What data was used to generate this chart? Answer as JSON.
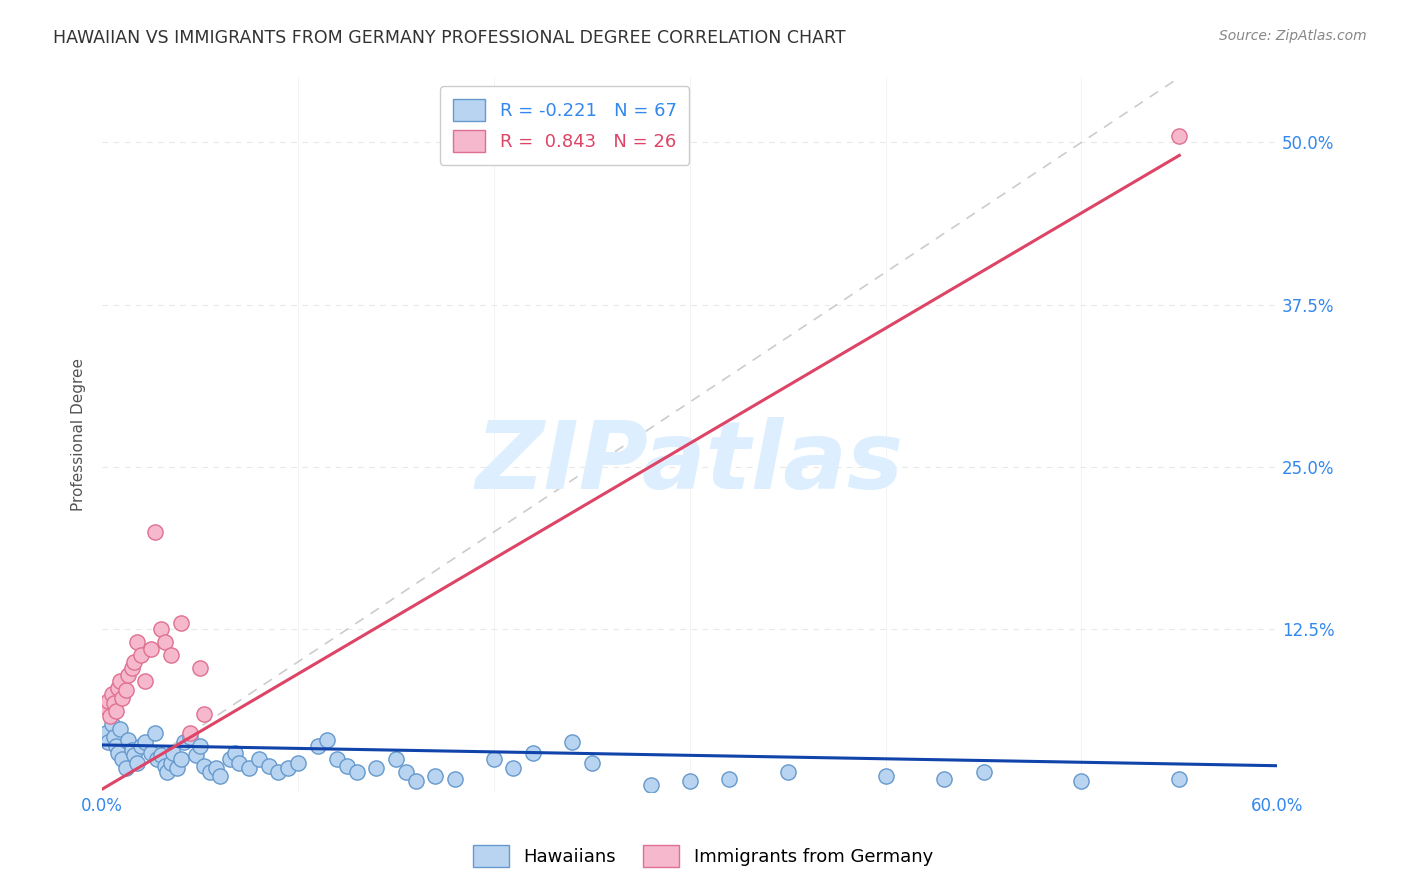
{
  "title": "HAWAIIAN VS IMMIGRANTS FROM GERMANY PROFESSIONAL DEGREE CORRELATION CHART",
  "source_text": "Source: ZipAtlas.com",
  "ylabel": "Professional Degree",
  "watermark": "ZIPatlas",
  "xlim": [
    0.0,
    0.6
  ],
  "ylim": [
    0.0,
    0.55
  ],
  "ytick_positions": [
    0.0,
    0.125,
    0.25,
    0.375,
    0.5
  ],
  "ytick_labels": [
    "",
    "12.5%",
    "25.0%",
    "37.5%",
    "50.0%"
  ],
  "xtick_positions": [
    0.0,
    0.1,
    0.2,
    0.3,
    0.4,
    0.5,
    0.6
  ],
  "xtick_labels": [
    "0.0%",
    "",
    "",
    "",
    "",
    "",
    "60.0%"
  ],
  "legend_line1": "R = -0.221   N = 67",
  "legend_line2": "R =  0.843   N = 26",
  "hawaiians_scatter": [
    [
      0.002,
      0.045
    ],
    [
      0.003,
      0.038
    ],
    [
      0.005,
      0.052
    ],
    [
      0.006,
      0.042
    ],
    [
      0.007,
      0.035
    ],
    [
      0.008,
      0.03
    ],
    [
      0.009,
      0.048
    ],
    [
      0.01,
      0.025
    ],
    [
      0.012,
      0.018
    ],
    [
      0.013,
      0.04
    ],
    [
      0.015,
      0.032
    ],
    [
      0.016,
      0.028
    ],
    [
      0.018,
      0.022
    ],
    [
      0.02,
      0.035
    ],
    [
      0.022,
      0.038
    ],
    [
      0.025,
      0.03
    ],
    [
      0.027,
      0.045
    ],
    [
      0.028,
      0.025
    ],
    [
      0.03,
      0.028
    ],
    [
      0.032,
      0.02
    ],
    [
      0.033,
      0.015
    ],
    [
      0.035,
      0.022
    ],
    [
      0.036,
      0.03
    ],
    [
      0.038,
      0.018
    ],
    [
      0.04,
      0.025
    ],
    [
      0.042,
      0.038
    ],
    [
      0.045,
      0.042
    ],
    [
      0.048,
      0.028
    ],
    [
      0.05,
      0.035
    ],
    [
      0.052,
      0.02
    ],
    [
      0.055,
      0.015
    ],
    [
      0.058,
      0.018
    ],
    [
      0.06,
      0.012
    ],
    [
      0.065,
      0.025
    ],
    [
      0.068,
      0.03
    ],
    [
      0.07,
      0.022
    ],
    [
      0.075,
      0.018
    ],
    [
      0.08,
      0.025
    ],
    [
      0.085,
      0.02
    ],
    [
      0.09,
      0.015
    ],
    [
      0.095,
      0.018
    ],
    [
      0.1,
      0.022
    ],
    [
      0.11,
      0.035
    ],
    [
      0.115,
      0.04
    ],
    [
      0.12,
      0.025
    ],
    [
      0.125,
      0.02
    ],
    [
      0.13,
      0.015
    ],
    [
      0.14,
      0.018
    ],
    [
      0.15,
      0.025
    ],
    [
      0.155,
      0.015
    ],
    [
      0.16,
      0.008
    ],
    [
      0.17,
      0.012
    ],
    [
      0.18,
      0.01
    ],
    [
      0.2,
      0.025
    ],
    [
      0.21,
      0.018
    ],
    [
      0.22,
      0.03
    ],
    [
      0.24,
      0.038
    ],
    [
      0.25,
      0.022
    ],
    [
      0.28,
      0.005
    ],
    [
      0.3,
      0.008
    ],
    [
      0.32,
      0.01
    ],
    [
      0.35,
      0.015
    ],
    [
      0.4,
      0.012
    ],
    [
      0.43,
      0.01
    ],
    [
      0.45,
      0.015
    ],
    [
      0.5,
      0.008
    ],
    [
      0.55,
      0.01
    ]
  ],
  "germany_scatter": [
    [
      0.002,
      0.065
    ],
    [
      0.003,
      0.07
    ],
    [
      0.004,
      0.058
    ],
    [
      0.005,
      0.075
    ],
    [
      0.006,
      0.068
    ],
    [
      0.007,
      0.062
    ],
    [
      0.008,
      0.08
    ],
    [
      0.009,
      0.085
    ],
    [
      0.01,
      0.072
    ],
    [
      0.012,
      0.078
    ],
    [
      0.013,
      0.09
    ],
    [
      0.015,
      0.095
    ],
    [
      0.016,
      0.1
    ],
    [
      0.018,
      0.115
    ],
    [
      0.02,
      0.105
    ],
    [
      0.022,
      0.085
    ],
    [
      0.025,
      0.11
    ],
    [
      0.027,
      0.2
    ],
    [
      0.03,
      0.125
    ],
    [
      0.032,
      0.115
    ],
    [
      0.035,
      0.105
    ],
    [
      0.04,
      0.13
    ],
    [
      0.045,
      0.045
    ],
    [
      0.05,
      0.095
    ],
    [
      0.052,
      0.06
    ],
    [
      0.55,
      0.505
    ]
  ],
  "hawaiians_line": {
    "x": [
      0.0,
      0.6
    ],
    "y": [
      0.036,
      0.02
    ]
  },
  "germany_line": {
    "x": [
      0.0,
      0.55
    ],
    "y": [
      0.002,
      0.49
    ]
  },
  "diagonal_line": {
    "x": [
      0.02,
      0.57
    ],
    "y": [
      0.02,
      0.57
    ]
  },
  "color_hawaiians_fill": "#b8d4f0",
  "color_hawaiians_edge": "#6699cc",
  "color_germany_fill": "#f5b8cc",
  "color_germany_edge": "#e07090",
  "color_line_hawaiians": "#1144aa",
  "color_line_germany": "#dd4466",
  "color_diagonal": "#cccccc",
  "color_grid": "#e8e8e8",
  "color_tick": "#3388ee",
  "color_title": "#333333",
  "color_watermark": "#ddeeff",
  "color_source": "#888888",
  "color_ylabel": "#555555",
  "scatter_size": 120,
  "title_fontsize": 12.5,
  "source_fontsize": 10,
  "ylabel_fontsize": 11,
  "tick_fontsize": 12,
  "legend_fontsize": 13,
  "watermark_fontsize": 68
}
